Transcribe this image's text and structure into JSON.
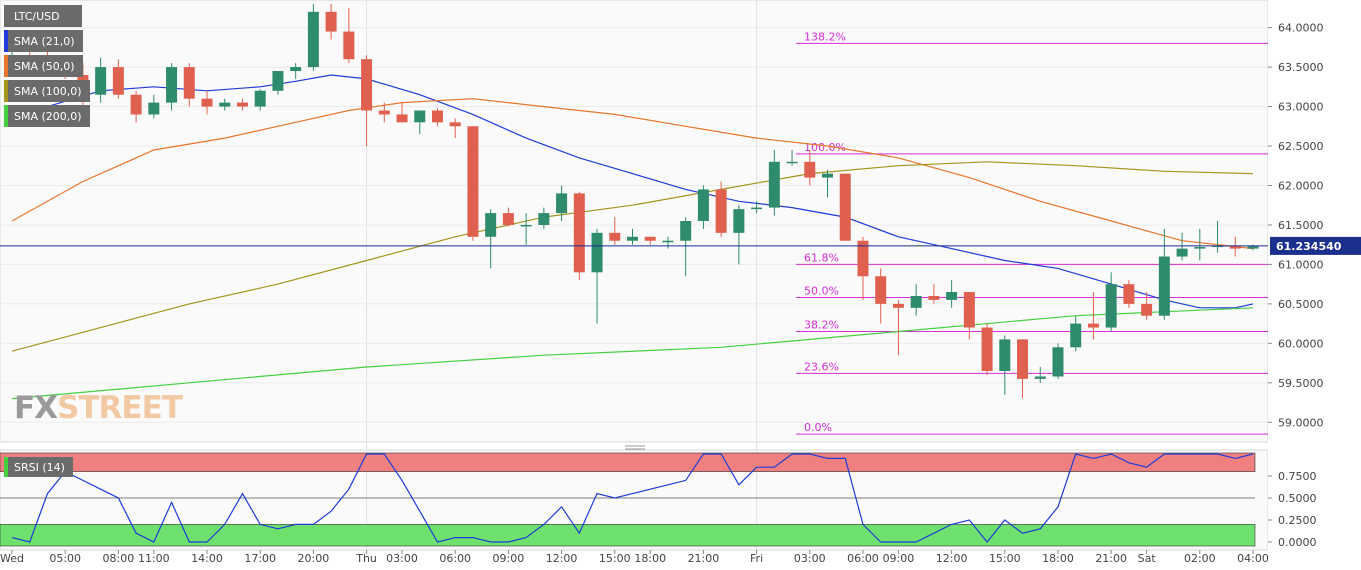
{
  "legend": [
    {
      "label": "LTC/USD",
      "color": "#6b6b6b"
    },
    {
      "label": "SMA (21,0)",
      "color": "#1f3bd8"
    },
    {
      "label": "SMA (50,0)",
      "color": "#e8762b"
    },
    {
      "label": "SMA (100,0)",
      "color": "#a6951e"
    },
    {
      "label": "SMA (200,0)",
      "color": "#45d13f"
    }
  ],
  "watermark": {
    "part1": "FX",
    "part2": "STREET"
  },
  "colors": {
    "bull": "#2e8b6e",
    "bear": "#e0604f",
    "fib": "#d62fd6",
    "price_line": "#1b2f8c",
    "srsi_line": "#1f3bd8",
    "srsi_over": "#f08080",
    "srsi_under": "#6ee06e"
  },
  "chart_data": {
    "type": "candlestick",
    "ylim": [
      58.75,
      64.35
    ],
    "y_ticks": [
      "64.0000",
      "63.5000",
      "63.0000",
      "62.5000",
      "62.0000",
      "61.5000",
      "61.0000",
      "60.5000",
      "60.0000",
      "59.5000",
      "59.0000"
    ],
    "x_ticks": [
      "Wed",
      "05:00",
      "08:00",
      "11:00",
      "14:00",
      "17:00",
      "20:00",
      "Thu",
      "03:00",
      "06:00",
      "09:00",
      "12:00",
      "15:00",
      "18:00",
      "21:00",
      "Fri",
      "03:00",
      "06:00",
      "09:00",
      "12:00",
      "15:00",
      "18:00",
      "21:00",
      "Sat",
      "02:00",
      "04:00"
    ],
    "current_price": "61.234540",
    "candles": [
      [
        63.55,
        63.75,
        63.4,
        63.65
      ],
      [
        63.65,
        63.85,
        63.5,
        63.6
      ],
      [
        63.6,
        63.7,
        63.45,
        63.55
      ],
      [
        63.55,
        63.62,
        63.35,
        63.4
      ],
      [
        63.4,
        63.55,
        63.0,
        63.15
      ],
      [
        63.15,
        63.62,
        63.05,
        63.5
      ],
      [
        63.5,
        63.6,
        63.1,
        63.15
      ],
      [
        63.15,
        63.2,
        62.8,
        62.9
      ],
      [
        62.9,
        63.15,
        62.85,
        63.05
      ],
      [
        63.05,
        63.55,
        62.95,
        63.5
      ],
      [
        63.5,
        63.55,
        63.0,
        63.1
      ],
      [
        63.1,
        63.2,
        62.9,
        63.0
      ],
      [
        63.0,
        63.1,
        62.95,
        63.05
      ],
      [
        63.05,
        63.1,
        62.95,
        63.0
      ],
      [
        63.0,
        63.22,
        62.95,
        63.2
      ],
      [
        63.2,
        63.45,
        63.15,
        63.45
      ],
      [
        63.45,
        63.55,
        63.35,
        63.5
      ],
      [
        63.5,
        64.3,
        63.45,
        64.2
      ],
      [
        64.2,
        64.3,
        63.85,
        63.95
      ],
      [
        63.95,
        64.25,
        63.55,
        63.6
      ],
      [
        63.6,
        63.65,
        62.5,
        62.95
      ],
      [
        62.95,
        63.05,
        62.8,
        62.9
      ],
      [
        62.9,
        63.05,
        62.8,
        62.8
      ],
      [
        62.8,
        62.95,
        62.65,
        62.95
      ],
      [
        62.95,
        62.98,
        62.75,
        62.8
      ],
      [
        62.8,
        62.85,
        62.6,
        62.75
      ],
      [
        62.75,
        62.75,
        61.3,
        61.35
      ],
      [
        61.35,
        61.7,
        60.95,
        61.65
      ],
      [
        61.65,
        61.72,
        61.48,
        61.5
      ],
      [
        61.5,
        61.65,
        61.25,
        61.5
      ],
      [
        61.5,
        61.72,
        61.45,
        61.65
      ],
      [
        61.65,
        62.0,
        61.55,
        61.9
      ],
      [
        61.9,
        61.92,
        60.8,
        60.9
      ],
      [
        60.9,
        61.45,
        60.25,
        61.4
      ],
      [
        61.4,
        61.6,
        61.25,
        61.3
      ],
      [
        61.3,
        61.45,
        61.25,
        61.35
      ],
      [
        61.35,
        61.35,
        61.25,
        61.3
      ],
      [
        61.3,
        61.35,
        61.2,
        61.3
      ],
      [
        61.3,
        61.6,
        60.85,
        61.55
      ],
      [
        61.55,
        62.0,
        61.45,
        61.95
      ],
      [
        61.95,
        62.05,
        61.35,
        61.4
      ],
      [
        61.4,
        61.75,
        61.0,
        61.7
      ],
      [
        61.7,
        61.8,
        61.65,
        61.72
      ],
      [
        61.72,
        62.45,
        61.62,
        62.3
      ],
      [
        62.3,
        62.45,
        62.25,
        62.3
      ],
      [
        62.3,
        62.45,
        62.0,
        62.1
      ],
      [
        62.1,
        62.2,
        61.85,
        62.15
      ],
      [
        62.15,
        62.15,
        61.3,
        61.3
      ],
      [
        61.3,
        61.35,
        60.55,
        60.85
      ],
      [
        60.85,
        60.95,
        60.25,
        60.5
      ],
      [
        60.5,
        60.55,
        59.85,
        60.45
      ],
      [
        60.45,
        60.75,
        60.35,
        60.6
      ],
      [
        60.6,
        60.75,
        60.5,
        60.55
      ],
      [
        60.55,
        60.8,
        60.45,
        60.65
      ],
      [
        60.65,
        60.65,
        60.05,
        60.2
      ],
      [
        60.2,
        60.25,
        59.6,
        59.65
      ],
      [
        59.65,
        60.1,
        59.35,
        60.05
      ],
      [
        60.05,
        60.05,
        59.3,
        59.55
      ],
      [
        59.55,
        59.7,
        59.5,
        59.58
      ],
      [
        59.58,
        60.0,
        59.55,
        59.95
      ],
      [
        59.95,
        60.35,
        59.9,
        60.25
      ],
      [
        60.25,
        60.65,
        60.05,
        60.2
      ],
      [
        60.2,
        60.9,
        60.15,
        60.75
      ],
      [
        60.75,
        60.8,
        60.45,
        60.5
      ],
      [
        60.5,
        60.65,
        60.3,
        60.35
      ],
      [
        60.35,
        61.45,
        60.3,
        61.1
      ],
      [
        61.1,
        61.4,
        61.05,
        61.2
      ],
      [
        61.2,
        61.45,
        61.05,
        61.22
      ],
      [
        61.22,
        61.55,
        61.15,
        61.24
      ],
      [
        61.24,
        61.35,
        61.1,
        61.2
      ],
      [
        61.2,
        61.25,
        61.18,
        61.23
      ]
    ],
    "sma": [
      {
        "name": "SMA (21,0)",
        "color": "#1f3bd8",
        "points": [
          [
            0,
            62.85
          ],
          [
            2,
            63.0
          ],
          [
            5,
            63.2
          ],
          [
            8,
            63.25
          ],
          [
            11,
            63.2
          ],
          [
            14,
            63.25
          ],
          [
            16,
            63.32
          ],
          [
            18,
            63.4
          ],
          [
            20,
            63.35
          ],
          [
            23,
            63.15
          ],
          [
            26,
            62.9
          ],
          [
            29,
            62.6
          ],
          [
            32,
            62.35
          ],
          [
            35,
            62.15
          ],
          [
            38,
            61.95
          ],
          [
            41,
            61.8
          ],
          [
            44,
            61.72
          ],
          [
            47,
            61.6
          ],
          [
            50,
            61.35
          ],
          [
            53,
            61.2
          ],
          [
            56,
            61.05
          ],
          [
            59,
            60.95
          ],
          [
            62,
            60.75
          ],
          [
            65,
            60.55
          ],
          [
            67,
            60.45
          ],
          [
            69,
            60.45
          ],
          [
            70,
            60.5
          ]
        ]
      },
      {
        "name": "SMA (50,0)",
        "color": "#e8762b",
        "points": [
          [
            0,
            61.55
          ],
          [
            4,
            62.05
          ],
          [
            8,
            62.45
          ],
          [
            12,
            62.6
          ],
          [
            16,
            62.8
          ],
          [
            19,
            62.95
          ],
          [
            22,
            63.05
          ],
          [
            26,
            63.1
          ],
          [
            30,
            63.0
          ],
          [
            34,
            62.9
          ],
          [
            38,
            62.75
          ],
          [
            42,
            62.6
          ],
          [
            46,
            62.5
          ],
          [
            50,
            62.35
          ],
          [
            54,
            62.1
          ],
          [
            58,
            61.8
          ],
          [
            62,
            61.55
          ],
          [
            66,
            61.3
          ],
          [
            70,
            61.2
          ]
        ]
      },
      {
        "name": "SMA (100,0)",
        "color": "#a6951e",
        "points": [
          [
            0,
            59.9
          ],
          [
            5,
            60.2
          ],
          [
            10,
            60.5
          ],
          [
            15,
            60.75
          ],
          [
            20,
            61.05
          ],
          [
            25,
            61.35
          ],
          [
            30,
            61.6
          ],
          [
            35,
            61.75
          ],
          [
            40,
            61.95
          ],
          [
            45,
            62.15
          ],
          [
            50,
            62.25
          ],
          [
            55,
            62.3
          ],
          [
            60,
            62.25
          ],
          [
            65,
            62.18
          ],
          [
            70,
            62.15
          ]
        ]
      },
      {
        "name": "SMA (200,0)",
        "color": "#45d13f",
        "points": [
          [
            0,
            59.3
          ],
          [
            10,
            59.5
          ],
          [
            20,
            59.7
          ],
          [
            30,
            59.85
          ],
          [
            40,
            59.95
          ],
          [
            50,
            60.15
          ],
          [
            60,
            60.35
          ],
          [
            70,
            60.45
          ]
        ]
      }
    ],
    "fibonacci": [
      {
        "label": "138.2%",
        "value": 63.8
      },
      {
        "label": "100.0%",
        "value": 62.4
      },
      {
        "label": "61.8%",
        "value": 61.0
      },
      {
        "label": "50.0%",
        "value": 60.58
      },
      {
        "label": "38.2%",
        "value": 60.15
      },
      {
        "label": "23.6%",
        "value": 59.62
      },
      {
        "label": "0.0%",
        "value": 58.85
      }
    ],
    "srsi": {
      "name": "SRSI (14)",
      "ylim": [
        0,
        1
      ],
      "y_ticks": [
        "0.7500",
        "0.5000",
        "0.2500",
        "0.0000"
      ],
      "values": [
        0.05,
        0.0,
        0.55,
        0.8,
        0.7,
        0.6,
        0.5,
        0.1,
        0.0,
        0.45,
        0.0,
        0.0,
        0.2,
        0.55,
        0.2,
        0.15,
        0.2,
        0.2,
        0.35,
        0.6,
        1.0,
        1.0,
        0.7,
        0.35,
        0.0,
        0.05,
        0.05,
        0.0,
        0.0,
        0.05,
        0.2,
        0.4,
        0.1,
        0.55,
        0.5,
        0.55,
        0.6,
        0.65,
        0.7,
        1.0,
        1.0,
        0.65,
        0.85,
        0.85,
        1.0,
        1.0,
        0.95,
        0.95,
        0.2,
        0.0,
        0.0,
        0.0,
        0.1,
        0.2,
        0.25,
        0.0,
        0.25,
        0.1,
        0.15,
        0.4,
        1.0,
        0.95,
        1.0,
        0.9,
        0.85,
        1.0,
        1.0,
        1.0,
        1.0,
        0.95,
        1.0
      ]
    }
  }
}
